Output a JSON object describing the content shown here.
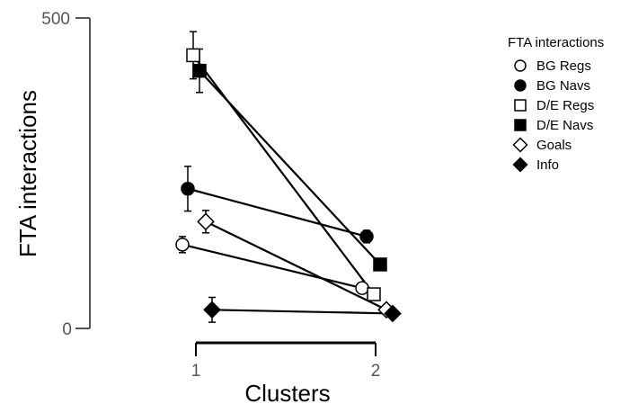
{
  "chart_data": {
    "type": "line",
    "title": "",
    "xlabel": "Clusters",
    "ylabel": "FTA interactions",
    "categories": [
      "1",
      "2"
    ],
    "yticks": [
      "500",
      "0"
    ],
    "ylim": [
      0,
      500
    ],
    "grid": false,
    "legend": {
      "title": "FTA interactions",
      "position": "right"
    },
    "series": [
      {
        "name": "BG Regs",
        "marker": "circle-open",
        "values": [
          135,
          65
        ],
        "errors": [
          13,
          0
        ]
      },
      {
        "name": "BG Navs",
        "marker": "circle-filled",
        "values": [
          225,
          148
        ],
        "errors": [
          36,
          10
        ]
      },
      {
        "name": "D/E Regs",
        "marker": "square-open",
        "values": [
          440,
          55
        ],
        "errors": [
          38,
          0
        ]
      },
      {
        "name": "D/E Navs",
        "marker": "square-filled",
        "values": [
          415,
          103
        ],
        "errors": [
          35,
          0
        ]
      },
      {
        "name": "Goals",
        "marker": "diamond-open",
        "values": [
          172,
          30
        ],
        "errors": [
          18,
          0
        ]
      },
      {
        "name": "Info",
        "marker": "diamond-filled",
        "values": [
          30,
          24
        ],
        "errors": [
          20,
          0
        ]
      }
    ]
  }
}
